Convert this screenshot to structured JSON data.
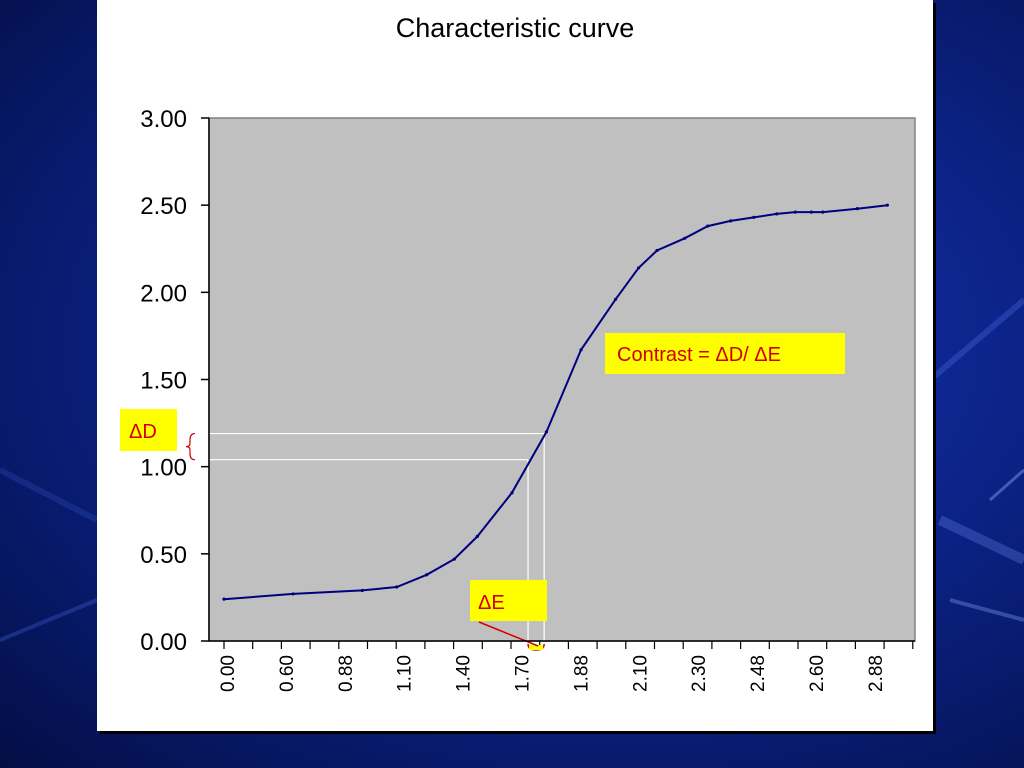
{
  "chart_data": {
    "type": "line",
    "title": "Characteristic curve",
    "xlabel": "",
    "ylabel": "",
    "ylim": [
      0,
      3
    ],
    "y_ticks": [
      "0.00",
      "0.50",
      "1.00",
      "1.50",
      "2.00",
      "2.50",
      "3.00"
    ],
    "x_tick_labels": [
      "0.00",
      "0.60",
      "0.88",
      "1.10",
      "1.40",
      "1.70",
      "1.88",
      "2.10",
      "2.30",
      "2.48",
      "2.60",
      "2.88"
    ],
    "x": [
      0.0,
      0.3,
      0.6,
      0.75,
      0.88,
      1.0,
      1.1,
      1.25,
      1.4,
      1.55,
      1.7,
      1.8,
      1.88,
      2.0,
      2.1,
      2.2,
      2.3,
      2.4,
      2.48,
      2.55,
      2.6,
      2.75,
      2.88
    ],
    "series": [
      {
        "values": [
          0.24,
          0.27,
          0.29,
          0.31,
          0.38,
          0.47,
          0.6,
          0.85,
          1.2,
          1.67,
          1.96,
          2.14,
          2.24,
          2.31,
          2.38,
          2.41,
          2.43,
          2.45,
          2.46,
          2.46,
          2.46,
          2.48,
          2.5
        ],
        "color": "#000080"
      }
    ],
    "grid": false,
    "plot_background": "#c0c0c0",
    "annotations": {
      "delta_d": {
        "label": "ΔD",
        "y_low": 1.04,
        "y_high": 1.19
      },
      "delta_e": {
        "label": "ΔE",
        "x_low": 1.32,
        "x_high": 1.39
      },
      "contrast": {
        "label": "Contrast = ΔD/ ΔE"
      }
    }
  },
  "colors": {
    "callout_fill": "#ffff00",
    "callout_text": "#d00000",
    "guide_line": "#ffffff",
    "curve": "#000080"
  }
}
